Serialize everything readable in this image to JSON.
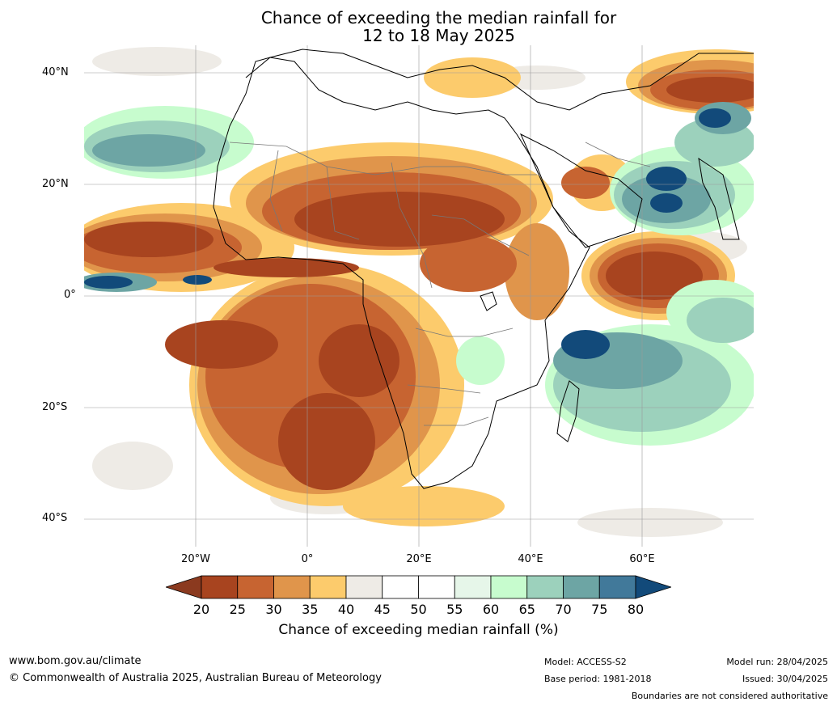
{
  "title_line1": "Chance of exceeding the median rainfall for",
  "title_line2": "12 to 18 May 2025",
  "lat_labels": [
    "40°N",
    "20°N",
    "0°",
    "20°S",
    "40°S"
  ],
  "lon_labels": [
    "20°W",
    "0°",
    "20°E",
    "40°E",
    "60°E"
  ],
  "colorbar": {
    "label": "Chance of exceeding median rainfall (%)",
    "ticks": [
      "20",
      "25",
      "30",
      "35",
      "40",
      "45",
      "50",
      "55",
      "60",
      "65",
      "70",
      "75",
      "80"
    ],
    "under_color": "#8b3a1f",
    "over_color": "#124a7a",
    "colors": [
      "#a8441f",
      "#c76431",
      "#e0954b",
      "#fccb6c",
      "#eeebe6",
      "#ffffff",
      "#ffffff",
      "#e6f6e9",
      "#c7fcce",
      "#9cd1bc",
      "#6da5a4",
      "#41799a"
    ]
  },
  "footer": {
    "website": "www.bom.gov.au/climate",
    "copyright": "© Commonwealth of Australia 2025, Australian Bureau of Meteorology",
    "model": "Model: ACCESS-S2",
    "base_period": "Base period: 1981-2018",
    "model_run": "Model run: 28/04/2025",
    "issued": "Issued: 30/04/2025",
    "disclaimer": "Boundaries are not considered authoritative"
  }
}
